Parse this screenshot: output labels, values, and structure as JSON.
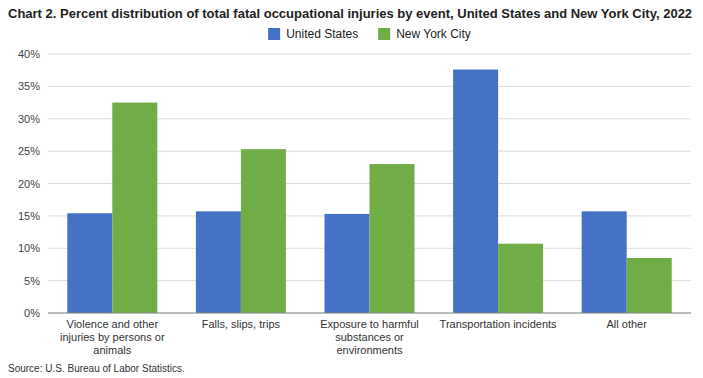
{
  "chart_data": {
    "type": "bar",
    "title": "Chart 2. Percent distribution of total fatal occupational injuries by event, United States and New York City, 2022",
    "categories": [
      "Violence and other\ninjuries by persons or\nanimals",
      "Falls, slips, trips",
      "Exposure to harmful\nsubstances or\nenvironments",
      "Transportation incidents",
      "All other"
    ],
    "series": [
      {
        "name": "United States",
        "color": "#4472C4",
        "values": [
          15.4,
          15.7,
          15.3,
          37.6,
          15.7
        ]
      },
      {
        "name": "New York City",
        "color": "#70AD47",
        "values": [
          32.5,
          25.3,
          23.0,
          10.7,
          8.5
        ]
      }
    ],
    "ylim": [
      0,
      40
    ],
    "yticks": [
      {
        "value": 0,
        "label": "0%"
      },
      {
        "value": 5,
        "label": "5%"
      },
      {
        "value": 10,
        "label": "10%"
      },
      {
        "value": 15,
        "label": "15%"
      },
      {
        "value": 20,
        "label": "20%"
      },
      {
        "value": 25,
        "label": "25%"
      },
      {
        "value": 30,
        "label": "30%"
      },
      {
        "value": 35,
        "label": "35%"
      },
      {
        "value": 40,
        "label": "40%"
      }
    ],
    "grid": true,
    "legend": "top",
    "source": "Source: U.S. Bureau of Labor Statistics."
  }
}
